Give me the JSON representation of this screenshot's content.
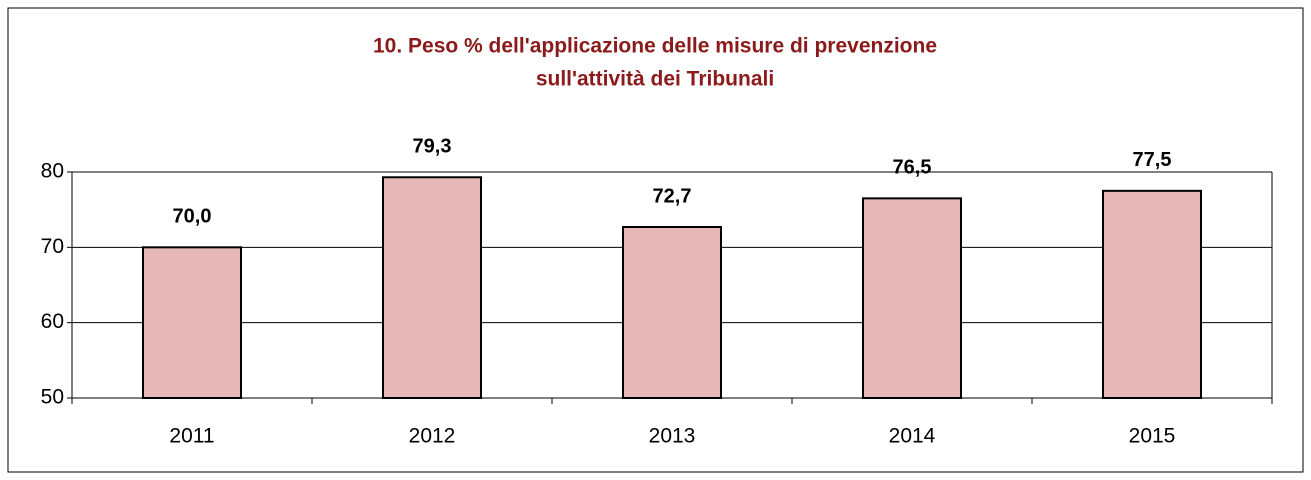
{
  "chart_data": {
    "type": "bar",
    "title": [
      "10. Peso % dell'applicazione delle misure di prevenzione",
      "sull'attività dei Tribunali"
    ],
    "categories": [
      "2011",
      "2012",
      "2013",
      "2014",
      "2015"
    ],
    "values": [
      70.0,
      79.3,
      72.7,
      76.5,
      77.5
    ],
    "value_labels": [
      "70,0",
      "79,3",
      "72,7",
      "76,5",
      "77,5"
    ],
    "color": "#e6b8b7",
    "ylim": [
      50,
      80
    ],
    "yticks": [
      50,
      60,
      70,
      80
    ],
    "grid": true
  }
}
